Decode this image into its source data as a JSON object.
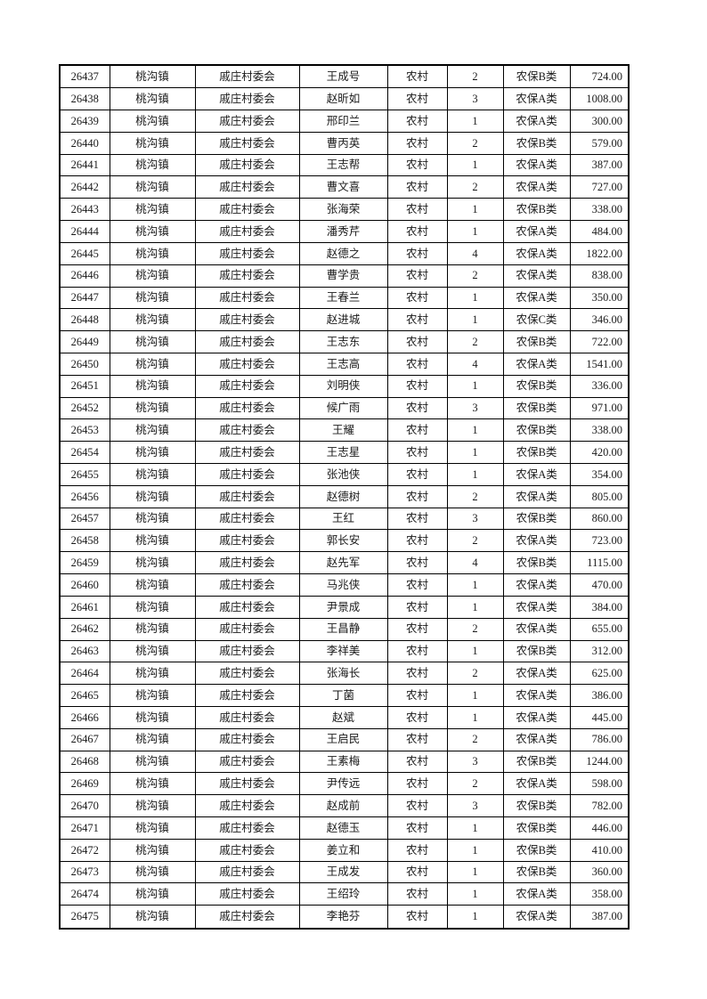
{
  "table": {
    "rows": [
      [
        "26437",
        "桃沟镇",
        "戚庄村委会",
        "王成号",
        "农村",
        "2",
        "农保B类",
        "724.00"
      ],
      [
        "26438",
        "桃沟镇",
        "戚庄村委会",
        "赵昕如",
        "农村",
        "3",
        "农保A类",
        "1008.00"
      ],
      [
        "26439",
        "桃沟镇",
        "戚庄村委会",
        "邢印兰",
        "农村",
        "1",
        "农保A类",
        "300.00"
      ],
      [
        "26440",
        "桃沟镇",
        "戚庄村委会",
        "曹丙英",
        "农村",
        "2",
        "农保B类",
        "579.00"
      ],
      [
        "26441",
        "桃沟镇",
        "戚庄村委会",
        "王志帮",
        "农村",
        "1",
        "农保A类",
        "387.00"
      ],
      [
        "26442",
        "桃沟镇",
        "戚庄村委会",
        "曹文喜",
        "农村",
        "2",
        "农保A类",
        "727.00"
      ],
      [
        "26443",
        "桃沟镇",
        "戚庄村委会",
        "张海荣",
        "农村",
        "1",
        "农保B类",
        "338.00"
      ],
      [
        "26444",
        "桃沟镇",
        "戚庄村委会",
        "潘秀芹",
        "农村",
        "1",
        "农保A类",
        "484.00"
      ],
      [
        "26445",
        "桃沟镇",
        "戚庄村委会",
        "赵德之",
        "农村",
        "4",
        "农保A类",
        "1822.00"
      ],
      [
        "26446",
        "桃沟镇",
        "戚庄村委会",
        "曹学贵",
        "农村",
        "2",
        "农保A类",
        "838.00"
      ],
      [
        "26447",
        "桃沟镇",
        "戚庄村委会",
        "王春兰",
        "农村",
        "1",
        "农保A类",
        "350.00"
      ],
      [
        "26448",
        "桃沟镇",
        "戚庄村委会",
        "赵进城",
        "农村",
        "1",
        "农保C类",
        "346.00"
      ],
      [
        "26449",
        "桃沟镇",
        "戚庄村委会",
        "王志东",
        "农村",
        "2",
        "农保B类",
        "722.00"
      ],
      [
        "26450",
        "桃沟镇",
        "戚庄村委会",
        "王志高",
        "农村",
        "4",
        "农保A类",
        "1541.00"
      ],
      [
        "26451",
        "桃沟镇",
        "戚庄村委会",
        "刘明侠",
        "农村",
        "1",
        "农保B类",
        "336.00"
      ],
      [
        "26452",
        "桃沟镇",
        "戚庄村委会",
        "候广雨",
        "农村",
        "3",
        "农保B类",
        "971.00"
      ],
      [
        "26453",
        "桃沟镇",
        "戚庄村委会",
        "王耀",
        "农村",
        "1",
        "农保B类",
        "338.00"
      ],
      [
        "26454",
        "桃沟镇",
        "戚庄村委会",
        "王志星",
        "农村",
        "1",
        "农保B类",
        "420.00"
      ],
      [
        "26455",
        "桃沟镇",
        "戚庄村委会",
        "张池侠",
        "农村",
        "1",
        "农保A类",
        "354.00"
      ],
      [
        "26456",
        "桃沟镇",
        "戚庄村委会",
        "赵德树",
        "农村",
        "2",
        "农保A类",
        "805.00"
      ],
      [
        "26457",
        "桃沟镇",
        "戚庄村委会",
        "王红",
        "农村",
        "3",
        "农保B类",
        "860.00"
      ],
      [
        "26458",
        "桃沟镇",
        "戚庄村委会",
        "郭长安",
        "农村",
        "2",
        "农保A类",
        "723.00"
      ],
      [
        "26459",
        "桃沟镇",
        "戚庄村委会",
        "赵先军",
        "农村",
        "4",
        "农保B类",
        "1115.00"
      ],
      [
        "26460",
        "桃沟镇",
        "戚庄村委会",
        "马兆侠",
        "农村",
        "1",
        "农保A类",
        "470.00"
      ],
      [
        "26461",
        "桃沟镇",
        "戚庄村委会",
        "尹景成",
        "农村",
        "1",
        "农保A类",
        "384.00"
      ],
      [
        "26462",
        "桃沟镇",
        "戚庄村委会",
        "王昌静",
        "农村",
        "2",
        "农保A类",
        "655.00"
      ],
      [
        "26463",
        "桃沟镇",
        "戚庄村委会",
        "李祥美",
        "农村",
        "1",
        "农保B类",
        "312.00"
      ],
      [
        "26464",
        "桃沟镇",
        "戚庄村委会",
        "张海长",
        "农村",
        "2",
        "农保A类",
        "625.00"
      ],
      [
        "26465",
        "桃沟镇",
        "戚庄村委会",
        "丁菌",
        "农村",
        "1",
        "农保A类",
        "386.00"
      ],
      [
        "26466",
        "桃沟镇",
        "戚庄村委会",
        "赵斌",
        "农村",
        "1",
        "农保A类",
        "445.00"
      ],
      [
        "26467",
        "桃沟镇",
        "戚庄村委会",
        "王启民",
        "农村",
        "2",
        "农保A类",
        "786.00"
      ],
      [
        "26468",
        "桃沟镇",
        "戚庄村委会",
        "王素梅",
        "农村",
        "3",
        "农保B类",
        "1244.00"
      ],
      [
        "26469",
        "桃沟镇",
        "戚庄村委会",
        "尹传远",
        "农村",
        "2",
        "农保A类",
        "598.00"
      ],
      [
        "26470",
        "桃沟镇",
        "戚庄村委会",
        "赵成前",
        "农村",
        "3",
        "农保B类",
        "782.00"
      ],
      [
        "26471",
        "桃沟镇",
        "戚庄村委会",
        "赵德玉",
        "农村",
        "1",
        "农保B类",
        "446.00"
      ],
      [
        "26472",
        "桃沟镇",
        "戚庄村委会",
        "姜立和",
        "农村",
        "1",
        "农保B类",
        "410.00"
      ],
      [
        "26473",
        "桃沟镇",
        "戚庄村委会",
        "王成发",
        "农村",
        "1",
        "农保B类",
        "360.00"
      ],
      [
        "26474",
        "桃沟镇",
        "戚庄村委会",
        "王绍玲",
        "农村",
        "1",
        "农保A类",
        "358.00"
      ],
      [
        "26475",
        "桃沟镇",
        "戚庄村委会",
        "李艳芬",
        "农村",
        "1",
        "农保A类",
        "387.00"
      ]
    ]
  }
}
